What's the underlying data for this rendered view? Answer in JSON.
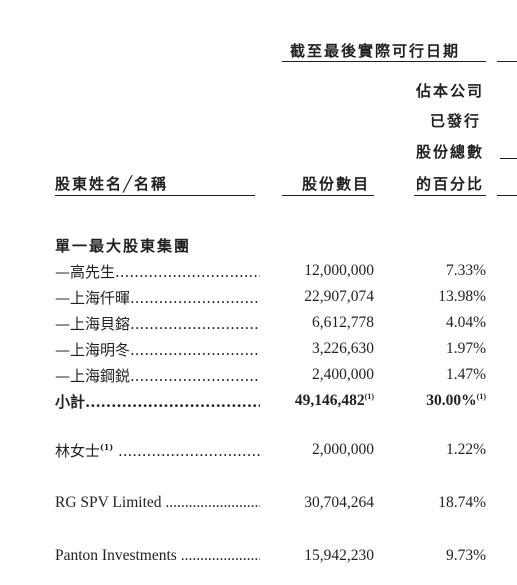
{
  "header": {
    "group_title": "截至最後實際可行日期",
    "col_name": "股東姓名╱名稱",
    "col_shares": "股份數目",
    "col_pct_lines": [
      "佔本公司",
      "已發行",
      "股份總數",
      "的百分比"
    ]
  },
  "section_title": "單一最大股東集團",
  "group_rows": [
    {
      "name": "—高先生",
      "shares": "12,000,000",
      "pct": "7.33%"
    },
    {
      "name": "—上海仟暉",
      "shares": "22,907,074",
      "pct": "13.98%"
    },
    {
      "name": "—上海貝鎔",
      "shares": "6,612,778",
      "pct": "4.04%"
    },
    {
      "name": "—上海明冬",
      "shares": "3,226,630",
      "pct": "1.97%"
    },
    {
      "name": "—上海鋼鋭",
      "shares": "2,400,000",
      "pct": "1.47%"
    }
  ],
  "subtotal": {
    "name": "小計",
    "shares": "49,146,482",
    "shares_note": "(1)",
    "pct": "30.00%",
    "pct_note": "(1)"
  },
  "other_rows": [
    {
      "name": "林女士",
      "note": "(1)",
      "shares": "2,000,000",
      "pct": "1.22%"
    },
    {
      "name": "RG SPV Limited",
      "note": "",
      "shares": "30,704,264",
      "pct": "18.74%"
    },
    {
      "name": "Panton Investments",
      "note": "",
      "shares": "15,942,230",
      "pct": "9.73%"
    }
  ],
  "leader": "..........................................................."
}
